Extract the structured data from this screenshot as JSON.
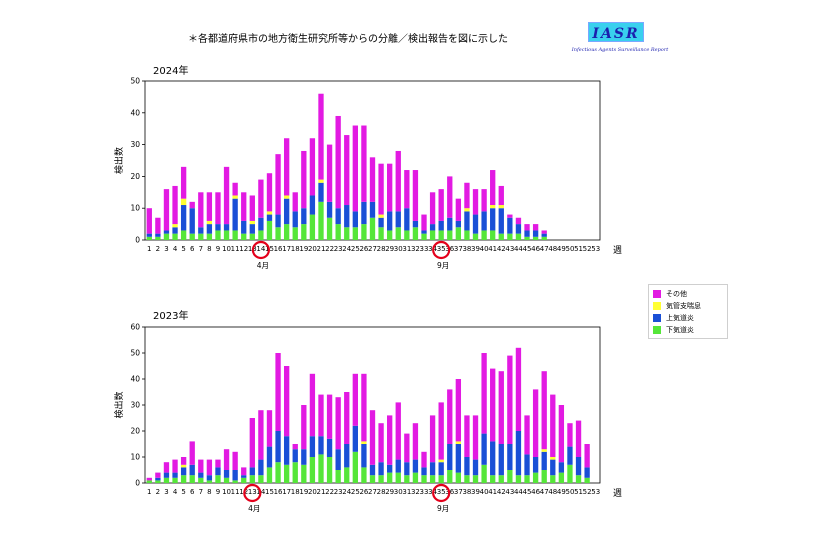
{
  "header": {
    "note": "＊各都道府県市の地方衛生研究所等からの分離／検出報告を図に示した",
    "logo_text": "IASR",
    "logo_sub": "Infectious Agents Surveillance Report"
  },
  "legend": {
    "items": [
      {
        "label": "その他",
        "color": "#e21ae2"
      },
      {
        "label": "気管支喘息",
        "color": "#ffff33"
      },
      {
        "label": "上気道炎",
        "color": "#1a4fd6"
      },
      {
        "label": "下気道炎",
        "color": "#55e639"
      }
    ]
  },
  "chart_data": [
    {
      "type": "bar",
      "stacked": true,
      "title": "2024年",
      "ylabel": "検出数",
      "xlabel": "週",
      "ylim": [
        0,
        50
      ],
      "yticks": [
        0,
        10,
        20,
        30,
        40,
        50
      ],
      "categories": [
        "1",
        "2",
        "3",
        "4",
        "5",
        "6",
        "7",
        "8",
        "9",
        "10",
        "11",
        "12",
        "13",
        "14",
        "15",
        "16",
        "17",
        "18",
        "19",
        "20",
        "21",
        "22",
        "23",
        "24",
        "25",
        "26",
        "27",
        "28",
        "29",
        "30",
        "31",
        "32",
        "33",
        "34",
        "35",
        "36",
        "37",
        "38",
        "39",
        "40",
        "41",
        "42",
        "43",
        "44",
        "45",
        "46",
        "47",
        "48",
        "49",
        "50",
        "51",
        "52",
        "53"
      ],
      "annotations": [
        {
          "week": "14",
          "label": "4月"
        },
        {
          "week": "35",
          "label": "9月"
        }
      ],
      "series": [
        {
          "name": "下気道炎",
          "values": [
            1,
            1,
            2,
            2,
            3,
            2,
            2,
            2,
            3,
            3,
            3,
            2,
            2,
            3,
            6,
            4,
            5,
            4,
            5,
            8,
            12,
            7,
            5,
            4,
            4,
            5,
            7,
            4,
            3,
            4,
            3,
            4,
            2,
            3,
            3,
            3,
            4,
            3,
            2,
            3,
            3,
            2,
            2,
            2,
            1,
            1,
            1,
            0,
            0,
            0,
            0,
            0,
            0
          ]
        },
        {
          "name": "上気道炎",
          "values": [
            1,
            1,
            1,
            2,
            8,
            8,
            2,
            3,
            2,
            2,
            10,
            4,
            3,
            4,
            2,
            4,
            8,
            5,
            5,
            6,
            6,
            5,
            5,
            7,
            5,
            7,
            5,
            3,
            6,
            5,
            7,
            2,
            1,
            2,
            3,
            4,
            2,
            6,
            6,
            6,
            7,
            8,
            5,
            3,
            2,
            2,
            1,
            0,
            0,
            0,
            0,
            0,
            0
          ]
        },
        {
          "name": "気管支喘息",
          "values": [
            0,
            0,
            0,
            1,
            2,
            0,
            0,
            1,
            0,
            0,
            1,
            0,
            1,
            0,
            1,
            0,
            1,
            0,
            0,
            0,
            1,
            0,
            0,
            0,
            0,
            0,
            0,
            1,
            0,
            0,
            0,
            0,
            0,
            0,
            0,
            0,
            0,
            1,
            0,
            0,
            1,
            1,
            0,
            0,
            0,
            0,
            0,
            0,
            0,
            0,
            0,
            0,
            0
          ]
        },
        {
          "name": "その他",
          "values": [
            8,
            5,
            13,
            12,
            10,
            2,
            11,
            9,
            10,
            18,
            4,
            9,
            8,
            12,
            12,
            19,
            18,
            6,
            18,
            18,
            27,
            18,
            29,
            22,
            27,
            24,
            14,
            16,
            15,
            19,
            12,
            16,
            5,
            10,
            10,
            13,
            7,
            8,
            8,
            7,
            11,
            6,
            1,
            2,
            2,
            2,
            1,
            0,
            0,
            0,
            0,
            0,
            0
          ]
        }
      ]
    },
    {
      "type": "bar",
      "stacked": true,
      "title": "2023年",
      "ylabel": "検出数",
      "xlabel": "週",
      "ylim": [
        0,
        60
      ],
      "yticks": [
        0,
        10,
        20,
        30,
        40,
        50,
        60
      ],
      "categories": [
        "1",
        "2",
        "3",
        "4",
        "5",
        "6",
        "7",
        "8",
        "9",
        "10",
        "11",
        "12",
        "13",
        "14",
        "15",
        "16",
        "17",
        "18",
        "19",
        "20",
        "21",
        "22",
        "23",
        "24",
        "25",
        "26",
        "27",
        "28",
        "29",
        "30",
        "31",
        "32",
        "33",
        "34",
        "35",
        "36",
        "37",
        "38",
        "39",
        "40",
        "41",
        "42",
        "43",
        "44",
        "45",
        "46",
        "47",
        "48",
        "49",
        "50",
        "51",
        "52",
        "53"
      ],
      "annotations": [
        {
          "week": "13",
          "label": "4月"
        },
        {
          "week": "35",
          "label": "9月"
        }
      ],
      "series": [
        {
          "name": "下気道炎",
          "values": [
            1,
            1,
            2,
            2,
            3,
            3,
            2,
            1,
            3,
            2,
            1,
            2,
            3,
            3,
            6,
            8,
            7,
            8,
            7,
            10,
            11,
            10,
            5,
            6,
            12,
            6,
            3,
            3,
            4,
            4,
            3,
            4,
            3,
            3,
            3,
            5,
            4,
            3,
            3,
            7,
            3,
            3,
            5,
            3,
            3,
            4,
            5,
            3,
            4,
            7,
            3,
            2,
            0
          ]
        },
        {
          "name": "上気道炎",
          "values": [
            0,
            1,
            2,
            2,
            3,
            4,
            2,
            2,
            3,
            3,
            4,
            1,
            3,
            6,
            8,
            12,
            11,
            5,
            6,
            8,
            7,
            7,
            8,
            9,
            10,
            9,
            4,
            5,
            3,
            5,
            5,
            5,
            3,
            5,
            5,
            10,
            11,
            7,
            6,
            12,
            13,
            12,
            10,
            17,
            8,
            6,
            7,
            6,
            4,
            7,
            7,
            4,
            0
          ]
        },
        {
          "name": "気管支喘息",
          "values": [
            0,
            0,
            0,
            0,
            1,
            0,
            0,
            0,
            0,
            0,
            0,
            0,
            0,
            0,
            0,
            0,
            0,
            0,
            0,
            0,
            0,
            0,
            0,
            0,
            0,
            1,
            0,
            0,
            0,
            0,
            0,
            0,
            0,
            0,
            1,
            0,
            1,
            0,
            0,
            0,
            0,
            0,
            0,
            0,
            0,
            0,
            1,
            1,
            0,
            0,
            0,
            0,
            0
          ]
        },
        {
          "name": "その他",
          "values": [
            1,
            2,
            4,
            5,
            3,
            9,
            5,
            6,
            3,
            8,
            7,
            3,
            19,
            19,
            14,
            30,
            27,
            2,
            17,
            24,
            16,
            17,
            20,
            20,
            20,
            26,
            21,
            15,
            19,
            22,
            11,
            14,
            6,
            18,
            22,
            21,
            24,
            16,
            17,
            31,
            28,
            28,
            34,
            32,
            15,
            26,
            30,
            24,
            22,
            9,
            14,
            9,
            0
          ]
        }
      ]
    }
  ]
}
